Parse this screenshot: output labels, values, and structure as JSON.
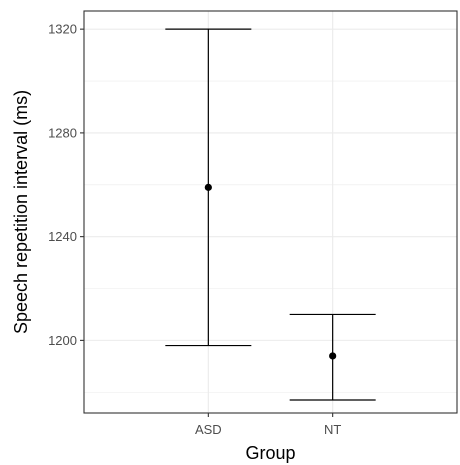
{
  "chart_data": {
    "type": "errorbar",
    "xlabel": "Group",
    "ylabel": "Speech repetition interval (ms)",
    "categories": [
      "ASD",
      "NT"
    ],
    "mean": [
      1259,
      1194
    ],
    "lower": [
      1198,
      1177
    ],
    "upper": [
      1320,
      1210
    ],
    "ylim": [
      1172,
      1327
    ],
    "yticks": [
      1200,
      1240,
      1280,
      1320
    ],
    "yticks_minor": [
      1180,
      1220,
      1260,
      1300
    ],
    "grid": true,
    "colors": {
      "marks": "#000000",
      "grid": "#ebebeb",
      "frame": "#333333"
    }
  }
}
